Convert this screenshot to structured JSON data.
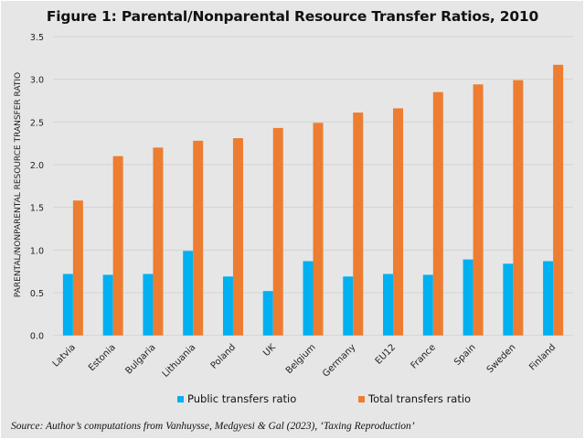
{
  "colors": {
    "public": "#00b0f0",
    "total": "#ed7d31",
    "grid": "#d4d4d4",
    "background": "#e6e6e6"
  },
  "chart_data": {
    "type": "bar",
    "title": "Figure 1: Parental/Nonparental Resource Transfer Ratios, 2010",
    "xlabel": "",
    "ylabel": "PARENTAL/NONPARENTAL RESOURCE TRANSFER RATIO",
    "ylim": [
      0,
      3.5
    ],
    "yticks": [
      "0.0",
      "0.5",
      "1.0",
      "1.5",
      "2.0",
      "2.5",
      "3.0",
      "3.5"
    ],
    "grid": true,
    "legend_position": "bottom",
    "categories": [
      "Latvia",
      "Estonia",
      "Bulgaria",
      "Lithuania",
      "Poland",
      "UK",
      "Belgium",
      "Germany",
      "EU12",
      "France",
      "Spain",
      "Sweden",
      "Finland"
    ],
    "series": [
      {
        "name": "Public transfers ratio",
        "values": [
          0.72,
          0.71,
          0.72,
          0.99,
          0.69,
          0.52,
          0.87,
          0.69,
          0.72,
          0.71,
          0.89,
          0.84,
          0.87
        ]
      },
      {
        "name": "Total transfers ratio",
        "values": [
          1.58,
          2.1,
          2.2,
          2.28,
          2.31,
          2.43,
          2.49,
          2.61,
          2.66,
          2.85,
          2.94,
          2.99,
          3.17
        ]
      }
    ],
    "source": "Source: Author’s computations from Vanhuysse, Medgyesi & Gal (2023), ‘Taxing Reproduction’"
  }
}
